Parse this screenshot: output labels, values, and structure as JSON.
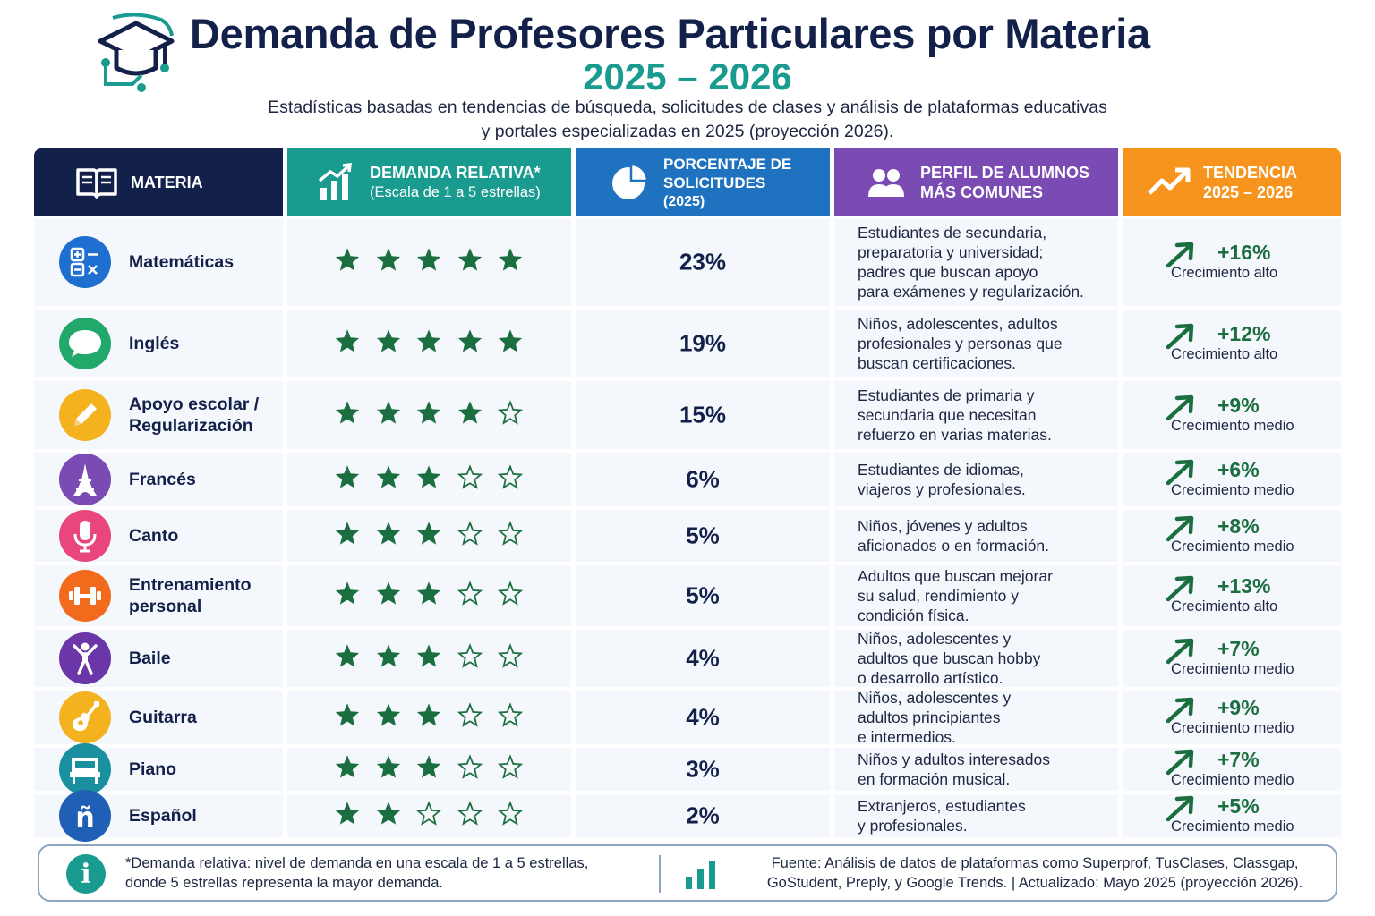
{
  "header": {
    "title": "Demanda de Profesores Particulares por Materia",
    "years": "2025 – 2026",
    "subtitle_line1": "Estadísticas basadas en tendencias de búsqueda, solicitudes de clases y análisis de plataformas educativas",
    "subtitle_line2": "y portales especializadas en 2025 (proyección 2026)."
  },
  "columns": {
    "materia": "MATERIA",
    "demanda": "DEMANDA RELATIVA*",
    "demanda_sub": "(Escala de 1 a 5 estrellas)",
    "porcentaje_1": "PORCENTAJE DE",
    "porcentaje_2": "SOLICITUDES",
    "porcentaje_sub": "(2025)",
    "perfil_1": "PERFIL DE ALUMNOS",
    "perfil_2": "MÁS COMUNES",
    "tendencia_1": "TENDENCIA",
    "tendencia_2": "2025 – 2026"
  },
  "colors": {
    "navy": "#13214a",
    "teal": "#1a9b8f",
    "blue": "#1f72bf",
    "purple": "#7a4bb3",
    "orange": "#f7941d",
    "star_green": "#1b6e3f"
  },
  "rows": [
    {
      "name": "Matemáticas",
      "icon": "math-icon",
      "color": "#1f6fd1",
      "stars": 5,
      "percent": "23%",
      "profile": [
        "Estudiantes de secundaria,",
        "preparatoria y universidad;",
        "padres que buscan apoyo",
        "para exámenes y regularización."
      ],
      "trend": "+16%",
      "trend_label": "Crecimiento alto"
    },
    {
      "name": "Inglés",
      "icon": "chat-bubble-icon",
      "color": "#23a86b",
      "stars": 5,
      "percent": "19%",
      "profile": [
        "Niños, adolescentes, adultos",
        "profesionales y personas que",
        "buscan certificaciones."
      ],
      "trend": "+12%",
      "trend_label": "Crecimiento alto"
    },
    {
      "name": "Apoyo escolar /\nRegularización",
      "icon": "pencil-icon",
      "color": "#f5b21f",
      "stars": 4,
      "percent": "15%",
      "profile": [
        "Estudiantes de primaria y",
        "secundaria que necesitan",
        "refuerzo en varias materias."
      ],
      "trend": "+9%",
      "trend_label": "Crecimiento medio"
    },
    {
      "name": "Francés",
      "icon": "eiffel-tower-icon",
      "color": "#7a4bb3",
      "stars": 3,
      "percent": "6%",
      "profile": [
        "Estudiantes de idiomas,",
        "viajeros y profesionales."
      ],
      "trend": "+6%",
      "trend_label": "Crecimiento medio"
    },
    {
      "name": "Canto",
      "icon": "microphone-icon",
      "color": "#e8467c",
      "stars": 3,
      "percent": "5%",
      "profile": [
        "Niños, jóvenes y adultos",
        "aficionados o en formación."
      ],
      "trend": "+8%",
      "trend_label": "Crecimiento medio"
    },
    {
      "name": "Entrenamiento\npersonal",
      "icon": "dumbbell-icon",
      "color": "#f26b1d",
      "stars": 3,
      "percent": "5%",
      "profile": [
        "Adultos que buscan mejorar",
        "su salud, rendimiento y",
        "condición física."
      ],
      "trend": "+13%",
      "trend_label": "Crecimiento alto"
    },
    {
      "name": "Baile",
      "icon": "dancer-icon",
      "color": "#6a36a8",
      "stars": 3,
      "percent": "4%",
      "profile": [
        "Niños, adolescentes y",
        "adultos que buscan hobby",
        "o desarrollo artístico."
      ],
      "trend": "+7%",
      "trend_label": "Crecimiento medio"
    },
    {
      "name": "Guitarra",
      "icon": "guitar-icon",
      "color": "#f5b21f",
      "stars": 3,
      "percent": "4%",
      "profile": [
        "Niños, adolescentes y",
        "adultos principiantes",
        "e intermedios."
      ],
      "trend": "+9%",
      "trend_label": "Crecimiento medio"
    },
    {
      "name": "Piano",
      "icon": "piano-icon",
      "color": "#1a8fa0",
      "stars": 3,
      "percent": "3%",
      "profile": [
        "Niños y adultos interesados",
        "en formación musical."
      ],
      "trend": "+7%",
      "trend_label": "Crecimiento medio"
    },
    {
      "name": "Español",
      "icon": "enie-letter-icon",
      "color": "#1f5fb5",
      "stars": 2,
      "percent": "2%",
      "profile": [
        "Extranjeros, estudiantes",
        "y profesionales."
      ],
      "trend": "+5%",
      "trend_label": "Crecimiento medio"
    }
  ],
  "footer": {
    "note_line1": "*Demanda relativa: nivel de demanda en una escala de 1 a 5 estrellas,",
    "note_line2": "donde 5 estrellas representa la mayor demanda.",
    "source_line1": "Fuente: Análisis de datos de plataformas como Superprof, TusClases, Classgap,",
    "source_line2": "GoStudent, Preply, y Google Trends.  |  Actualizado: Mayo 2025 (proyección 2026)."
  }
}
